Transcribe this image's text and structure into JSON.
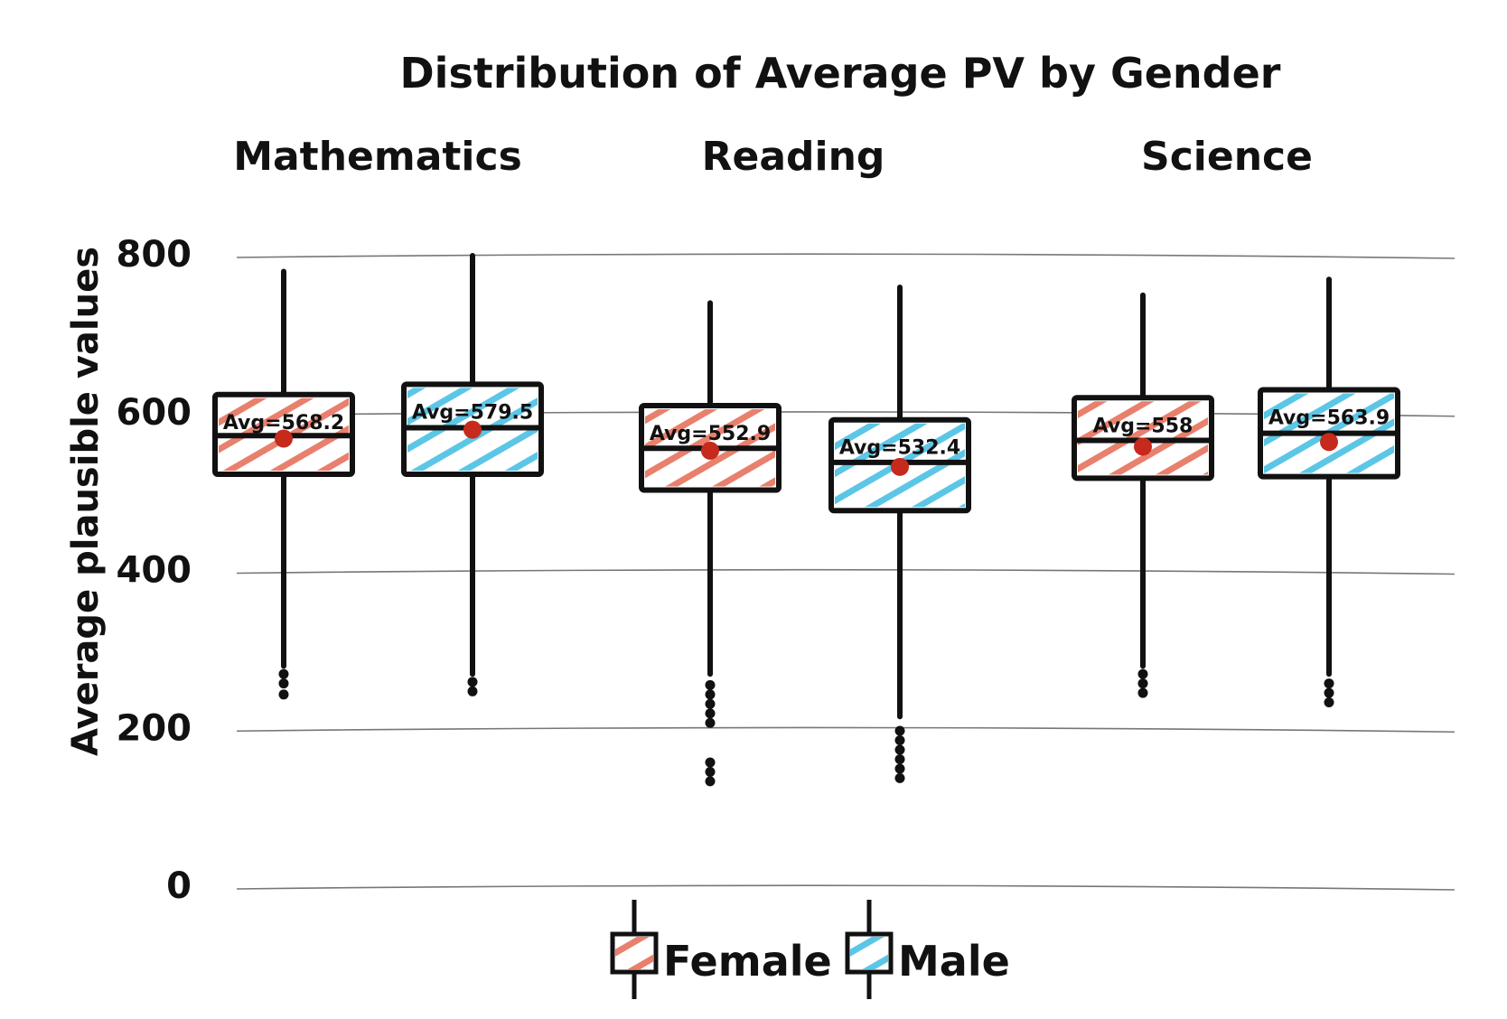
{
  "chart_data": {
    "type": "box",
    "title": "Distribution of Average PV by Gender",
    "ylabel": "Average plausible values",
    "xlabel": "",
    "ylim": [
      0,
      800
    ],
    "yticks": [
      0,
      200,
      400,
      600,
      800
    ],
    "grid": true,
    "legend": {
      "position": "bottom-center",
      "entries": [
        "Female",
        "Male"
      ]
    },
    "colors": {
      "Female": "#e8806d",
      "Male": "#5cc6e6",
      "mean": "#c62a1d",
      "ink": "#111111",
      "grid": "#777777"
    },
    "avg_prefix": "Avg=",
    "panels": [
      {
        "name": "Mathematics",
        "boxes": [
          {
            "group": "Female",
            "whisker_low": 280,
            "q1": 523,
            "median": 572,
            "q3": 624,
            "whisker_high": 780,
            "mean": 568.2,
            "mean_label": "568.2",
            "outliers": [
              270,
              258,
              244
            ]
          },
          {
            "group": "Male",
            "whisker_low": 270,
            "q1": 523,
            "median": 582,
            "q3": 637,
            "whisker_high": 800,
            "mean": 579.5,
            "mean_label": "579.5",
            "outliers": [
              260,
              248
            ]
          }
        ]
      },
      {
        "name": "Reading",
        "boxes": [
          {
            "group": "Female",
            "whisker_low": 270,
            "q1": 503,
            "median": 556,
            "q3": 610,
            "whisker_high": 740,
            "mean": 552.9,
            "mean_label": "552.9",
            "outliers": [
              256,
              244,
              232,
              220,
              208,
              158,
              146,
              134
            ]
          },
          {
            "group": "Male",
            "whisker_low": 216,
            "q1": 477,
            "median": 538,
            "q3": 592,
            "whisker_high": 760,
            "mean": 532.4,
            "mean_label": "532.4",
            "outliers": [
              198,
              186,
              174,
              162,
              150,
              138
            ]
          }
        ]
      },
      {
        "name": "Science",
        "boxes": [
          {
            "group": "Female",
            "whisker_low": 280,
            "q1": 518,
            "median": 566,
            "q3": 620,
            "whisker_high": 750,
            "mean": 558,
            "mean_label": "558",
            "outliers": [
              270,
              258,
              246
            ]
          },
          {
            "group": "Male",
            "whisker_low": 270,
            "q1": 520,
            "median": 575,
            "q3": 630,
            "whisker_high": 770,
            "mean": 563.9,
            "mean_label": "563.9",
            "outliers": [
              258,
              246,
              234
            ]
          }
        ]
      }
    ]
  }
}
